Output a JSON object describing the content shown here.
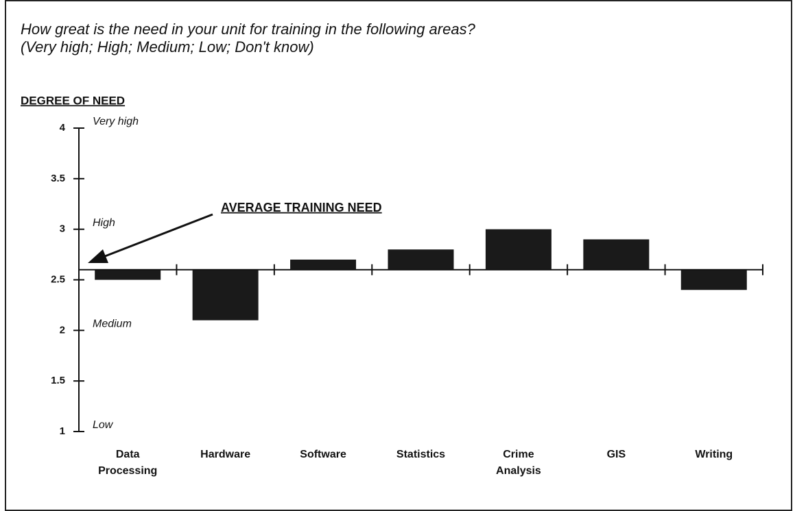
{
  "chart_data": {
    "type": "bar",
    "title": "How great is the need in your unit for training in the following areas?",
    "subtitle": "(Very high; High; Medium; Low; Don't know)",
    "y_label": "DEGREE OF NEED",
    "annotation": "AVERAGE TRAINING NEED",
    "categories": [
      "Data Processing",
      "Hardware",
      "Software",
      "Statistics",
      "Crime Analysis",
      "GIS",
      "Writing"
    ],
    "values": [
      2.5,
      2.1,
      2.7,
      2.8,
      3.0,
      2.9,
      2.4
    ],
    "baseline": 2.6,
    "color": "#1a1a1a",
    "ylim": [
      1,
      4
    ],
    "yticks": [
      1,
      1.5,
      2,
      2.5,
      3,
      3.5,
      4
    ],
    "level_labels": [
      {
        "value": 4,
        "label": "Very high"
      },
      {
        "value": 3,
        "label": "High"
      },
      {
        "value": 2,
        "label": "Medium"
      },
      {
        "value": 1,
        "label": "Low"
      }
    ]
  }
}
